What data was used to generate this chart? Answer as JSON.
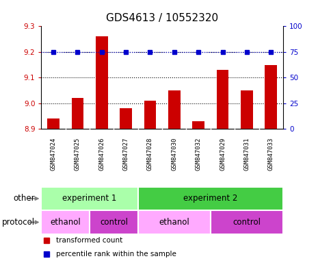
{
  "title": "GDS4613 / 10552320",
  "samples": [
    "GSM847024",
    "GSM847025",
    "GSM847026",
    "GSM847027",
    "GSM847028",
    "GSM847030",
    "GSM847032",
    "GSM847029",
    "GSM847031",
    "GSM847033"
  ],
  "bar_values": [
    8.94,
    9.02,
    9.26,
    8.98,
    9.01,
    9.05,
    8.93,
    9.13,
    9.05,
    9.15
  ],
  "dot_values": [
    75,
    75,
    75,
    75,
    75,
    75,
    75,
    75,
    75,
    75
  ],
  "ylim_left": [
    8.9,
    9.3
  ],
  "ylim_right": [
    0,
    100
  ],
  "yticks_left": [
    8.9,
    9.0,
    9.1,
    9.2,
    9.3
  ],
  "yticks_right": [
    0,
    25,
    50,
    75,
    100
  ],
  "bar_color": "#cc0000",
  "dot_color": "#0000cc",
  "bg_color": "#ffffff",
  "sample_label_bg": "#cccccc",
  "experiment1_color": "#aaffaa",
  "experiment2_color": "#44cc44",
  "ethanol_color": "#ffaaff",
  "control_color": "#cc44cc",
  "other_label": "other",
  "protocol_label": "protocol",
  "experiment1_label": "experiment 1",
  "experiment2_label": "experiment 2",
  "ethanol_label": "ethanol",
  "control_label": "control",
  "legend_bar_label": "transformed count",
  "legend_dot_label": "percentile rank within the sample",
  "title_fontsize": 11,
  "tick_fontsize": 7.5,
  "sample_fontsize": 6.5,
  "label_fontsize": 8.5,
  "legend_fontsize": 7.5
}
